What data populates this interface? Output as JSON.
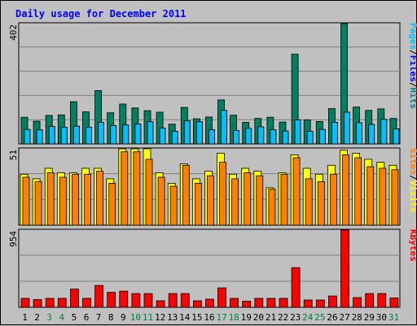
{
  "chart_data": {
    "type": "bar",
    "title": "Daily usage for December 2011",
    "categories": [
      "1",
      "2",
      "3",
      "4",
      "5",
      "6",
      "7",
      "8",
      "9",
      "10",
      "11",
      "12",
      "13",
      "14",
      "15",
      "16",
      "17",
      "18",
      "19",
      "20",
      "21",
      "22",
      "23",
      "24",
      "25",
      "26",
      "27",
      "28",
      "29",
      "30",
      "31"
    ],
    "weekend_days": [
      "3",
      "4",
      "10",
      "11",
      "17",
      "18",
      "24",
      "25",
      "31"
    ],
    "panels": [
      {
        "id": "hits-files-pages",
        "ylim": [
          0,
          402
        ],
        "ytick_label": "402",
        "legend": [
          "Pages",
          "/",
          "Files",
          "/",
          "Hits"
        ],
        "legend_colors": [
          "#00c0ff",
          "#000000",
          "#0000ff",
          "#000000",
          "#008080"
        ],
        "series": [
          {
            "name": "Hits",
            "color": "#008060",
            "values": [
              89,
              76,
              95,
              97,
              141,
              107,
              178,
              104,
              133,
              120,
              111,
              106,
              66,
              122,
              84,
              90,
              147,
              96,
              72,
              85,
              89,
              73,
              300,
              80,
              75,
              118,
              402,
              123,
              112,
              117,
              85
            ]
          },
          {
            "name": "Files",
            "color": "#0000ff",
            "values": [
              48,
              47,
              58,
              56,
              59,
              56,
              72,
              61,
              63,
              66,
              74,
              53,
              42,
              77,
              74,
              47,
              112,
              45,
              52,
              57,
              47,
              43,
              80,
              42,
              48,
              72,
              106,
              71,
              65,
              82,
              50
            ]
          },
          {
            "name": "Pages",
            "color": "#00c0ff",
            "values": [
              48,
              47,
              58,
              56,
              59,
              56,
              72,
              61,
              63,
              66,
              74,
              53,
              42,
              77,
              74,
              47,
              112,
              45,
              52,
              57,
              47,
              43,
              80,
              42,
              48,
              72,
              106,
              71,
              65,
              82,
              50
            ]
          }
        ]
      },
      {
        "id": "visits-sites",
        "ylim": [
          0,
          51
        ],
        "ytick_label": "51",
        "legend": [
          "Sites",
          "/",
          "Visits"
        ],
        "legend_colors": [
          "#ff8000",
          "#000000",
          "#ffff00"
        ],
        "series": [
          {
            "name": "Visits",
            "color": "#ffff00",
            "values": [
              34,
              31,
              38,
              35,
              35,
              38,
              38,
              31,
              51,
              51,
              51,
              35,
              28,
              41,
              31,
              36,
              48,
              34,
              38,
              36,
              25,
              35,
              47,
              38,
              34,
              40,
              50,
              48,
              44,
              42,
              40
            ]
          },
          {
            "name": "Sites",
            "color": "#ff8000",
            "values": [
              32,
              29,
              35,
              32,
              34,
              34,
              36,
              28,
              49,
              49,
              44,
              32,
              26,
              40,
              28,
              33,
              42,
              31,
              35,
              33,
              24,
              34,
              45,
              31,
              29,
              34,
              47,
              45,
              39,
              38,
              37
            ]
          }
        ]
      },
      {
        "id": "kbytes",
        "ylim": [
          0,
          954
        ],
        "ytick_label": "954",
        "legend": [
          "KBytes"
        ],
        "legend_colors": [
          "#ff0000"
        ],
        "series": [
          {
            "name": "KBytes",
            "color": "#ff0000",
            "values": [
              110,
              95,
              110,
              110,
              225,
              110,
              270,
              185,
              200,
              170,
              170,
              80,
              170,
              170,
              80,
              100,
              240,
              110,
              75,
              110,
              110,
              110,
              490,
              90,
              90,
              140,
              954,
              120,
              170,
              170,
              115
            ]
          }
        ]
      }
    ]
  }
}
